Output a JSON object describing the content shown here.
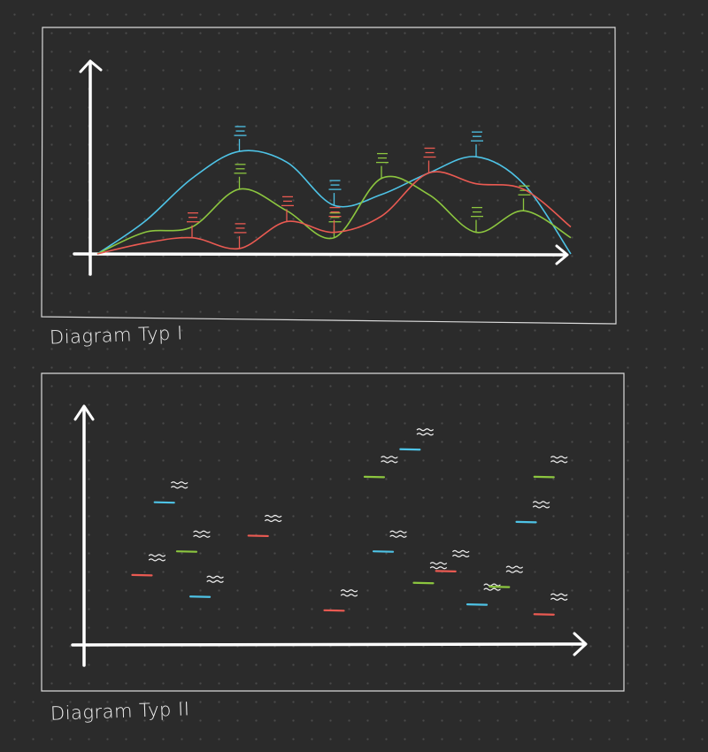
{
  "diagrams": [
    {
      "caption": "Diagram Typ I",
      "chart_data": {
        "type": "line",
        "title": "",
        "xlabel": "",
        "ylabel": "",
        "axis_ticks": false,
        "x": [
          0,
          1,
          2,
          3,
          4,
          5,
          6,
          7,
          8,
          9,
          10
        ],
        "series": [
          {
            "color": "#4ec3e6",
            "values": [
              0,
              30,
              70,
              95,
              85,
              45,
              55,
              75,
              90,
              65,
              0
            ]
          },
          {
            "color": "#8cc63f",
            "values": [
              0,
              20,
              25,
              60,
              40,
              15,
              70,
              55,
              20,
              40,
              15
            ]
          },
          {
            "color": "#ea5a52",
            "values": [
              0,
              10,
              15,
              5,
              30,
              20,
              35,
              75,
              65,
              60,
              25
            ]
          }
        ],
        "annotations": "Each peak/valley is marked with a short tick and squiggle label in the series color; no readable text."
      }
    },
    {
      "caption": "Diagram Typ II",
      "chart_data": {
        "type": "scatter",
        "title": "",
        "xlabel": "",
        "ylabel": "",
        "axis_ticks": false,
        "marker": "short horizontal dash with squiggle label (unreadable)",
        "series": [
          {
            "color": "#4ec3e6",
            "points": [
              [
                1.5,
                6.5
              ],
              [
                2.3,
                1.7
              ],
              [
                6.4,
                4.0
              ],
              [
                7.0,
                9.2
              ],
              [
                8.5,
                1.3
              ],
              [
                9.6,
                5.5
              ]
            ]
          },
          {
            "color": "#8cc63f",
            "points": [
              [
                2.0,
                4.0
              ],
              [
                6.2,
                7.8
              ],
              [
                7.3,
                2.4
              ],
              [
                9.0,
                2.2
              ],
              [
                10.0,
                7.8
              ]
            ]
          },
          {
            "color": "#ea5a52",
            "points": [
              [
                1.0,
                2.8
              ],
              [
                3.6,
                4.8
              ],
              [
                5.3,
                1.0
              ],
              [
                7.8,
                3.0
              ],
              [
                10.0,
                0.8
              ]
            ]
          }
        ]
      }
    }
  ]
}
